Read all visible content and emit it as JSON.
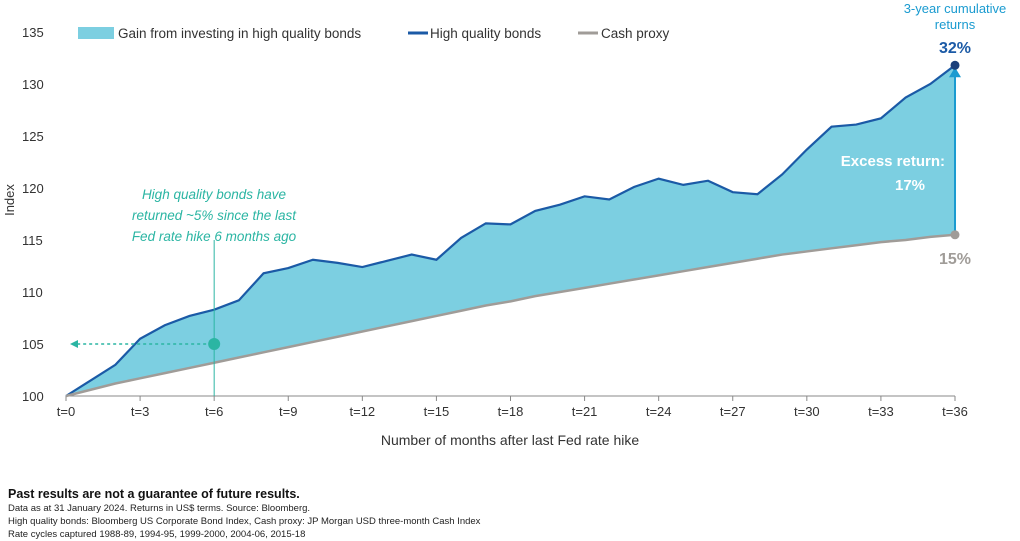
{
  "chart_data": {
    "type": "area",
    "xlabel": "Number of months after last Fed rate hike",
    "ylabel": "Index",
    "ylim": [
      100,
      135
    ],
    "yticks": [
      100,
      105,
      110,
      115,
      120,
      125,
      130,
      135
    ],
    "xlim": [
      0,
      36
    ],
    "xtick_labels": [
      "t=0",
      "t=3",
      "t=6",
      "t=9",
      "t=12",
      "t=15",
      "t=18",
      "t=21",
      "t=24",
      "t=27",
      "t=30",
      "t=33",
      "t=36"
    ],
    "legend": [
      "Gain from investing in high quality bonds",
      "High quality bonds",
      "Cash proxy"
    ],
    "legend_position": "top-left",
    "series": [
      {
        "name": "High quality bonds",
        "color": "#1b5aa6",
        "values": [
          100,
          101.5,
          103,
          105.5,
          106.8,
          107.7,
          108.3,
          109.2,
          111.8,
          112.3,
          113.1,
          112.8,
          112.4,
          113,
          113.6,
          113.1,
          115.2,
          116.6,
          116.5,
          117.8,
          118.4,
          119.2,
          118.9,
          120.1,
          120.9,
          120.3,
          120.7,
          119.6,
          119.4,
          121.3,
          123.7,
          125.9,
          126.1,
          126.7,
          128.7,
          130,
          131.8
        ]
      },
      {
        "name": "Cash proxy",
        "color": "#a09c98",
        "values": [
          100,
          100.6,
          101.2,
          101.7,
          102.2,
          102.7,
          103.2,
          103.7,
          104.2,
          104.7,
          105.2,
          105.7,
          106.2,
          106.7,
          107.2,
          107.7,
          108.2,
          108.7,
          109.1,
          109.6,
          110,
          110.4,
          110.8,
          111.2,
          111.6,
          112,
          112.4,
          112.8,
          113.2,
          113.6,
          113.9,
          114.2,
          114.5,
          114.8,
          115,
          115.3,
          115.5
        ]
      }
    ],
    "fill_color": "#7ccfe1",
    "annotations": {
      "cumulative_title": "3-year cumulative returns",
      "cumulative_line1": "3-year cumulative",
      "cumulative_line2": "returns",
      "bond_return": "32%",
      "cash_return": "15%",
      "excess_label": "Excess return:",
      "excess_value": "17%",
      "callout": [
        "High quality bonds have",
        "returned ~5% since the last",
        "Fed rate hike 6 months ago"
      ],
      "callout_point": {
        "x": 6,
        "y": 105
      }
    }
  },
  "footnotes": {
    "disclaimer": "Past results are not a guarantee of future results.",
    "line1": "Data as at 31 January 2024. Returns in US$ terms. Source: Bloomberg.",
    "line2": "High quality bonds: Bloomberg US Corporate Bond Index, Cash proxy: JP Morgan USD three-month Cash Index",
    "line3": "Rate cycles captured 1988-89, 1994-95, 1999-2000, 2004-06, 2015-18"
  }
}
